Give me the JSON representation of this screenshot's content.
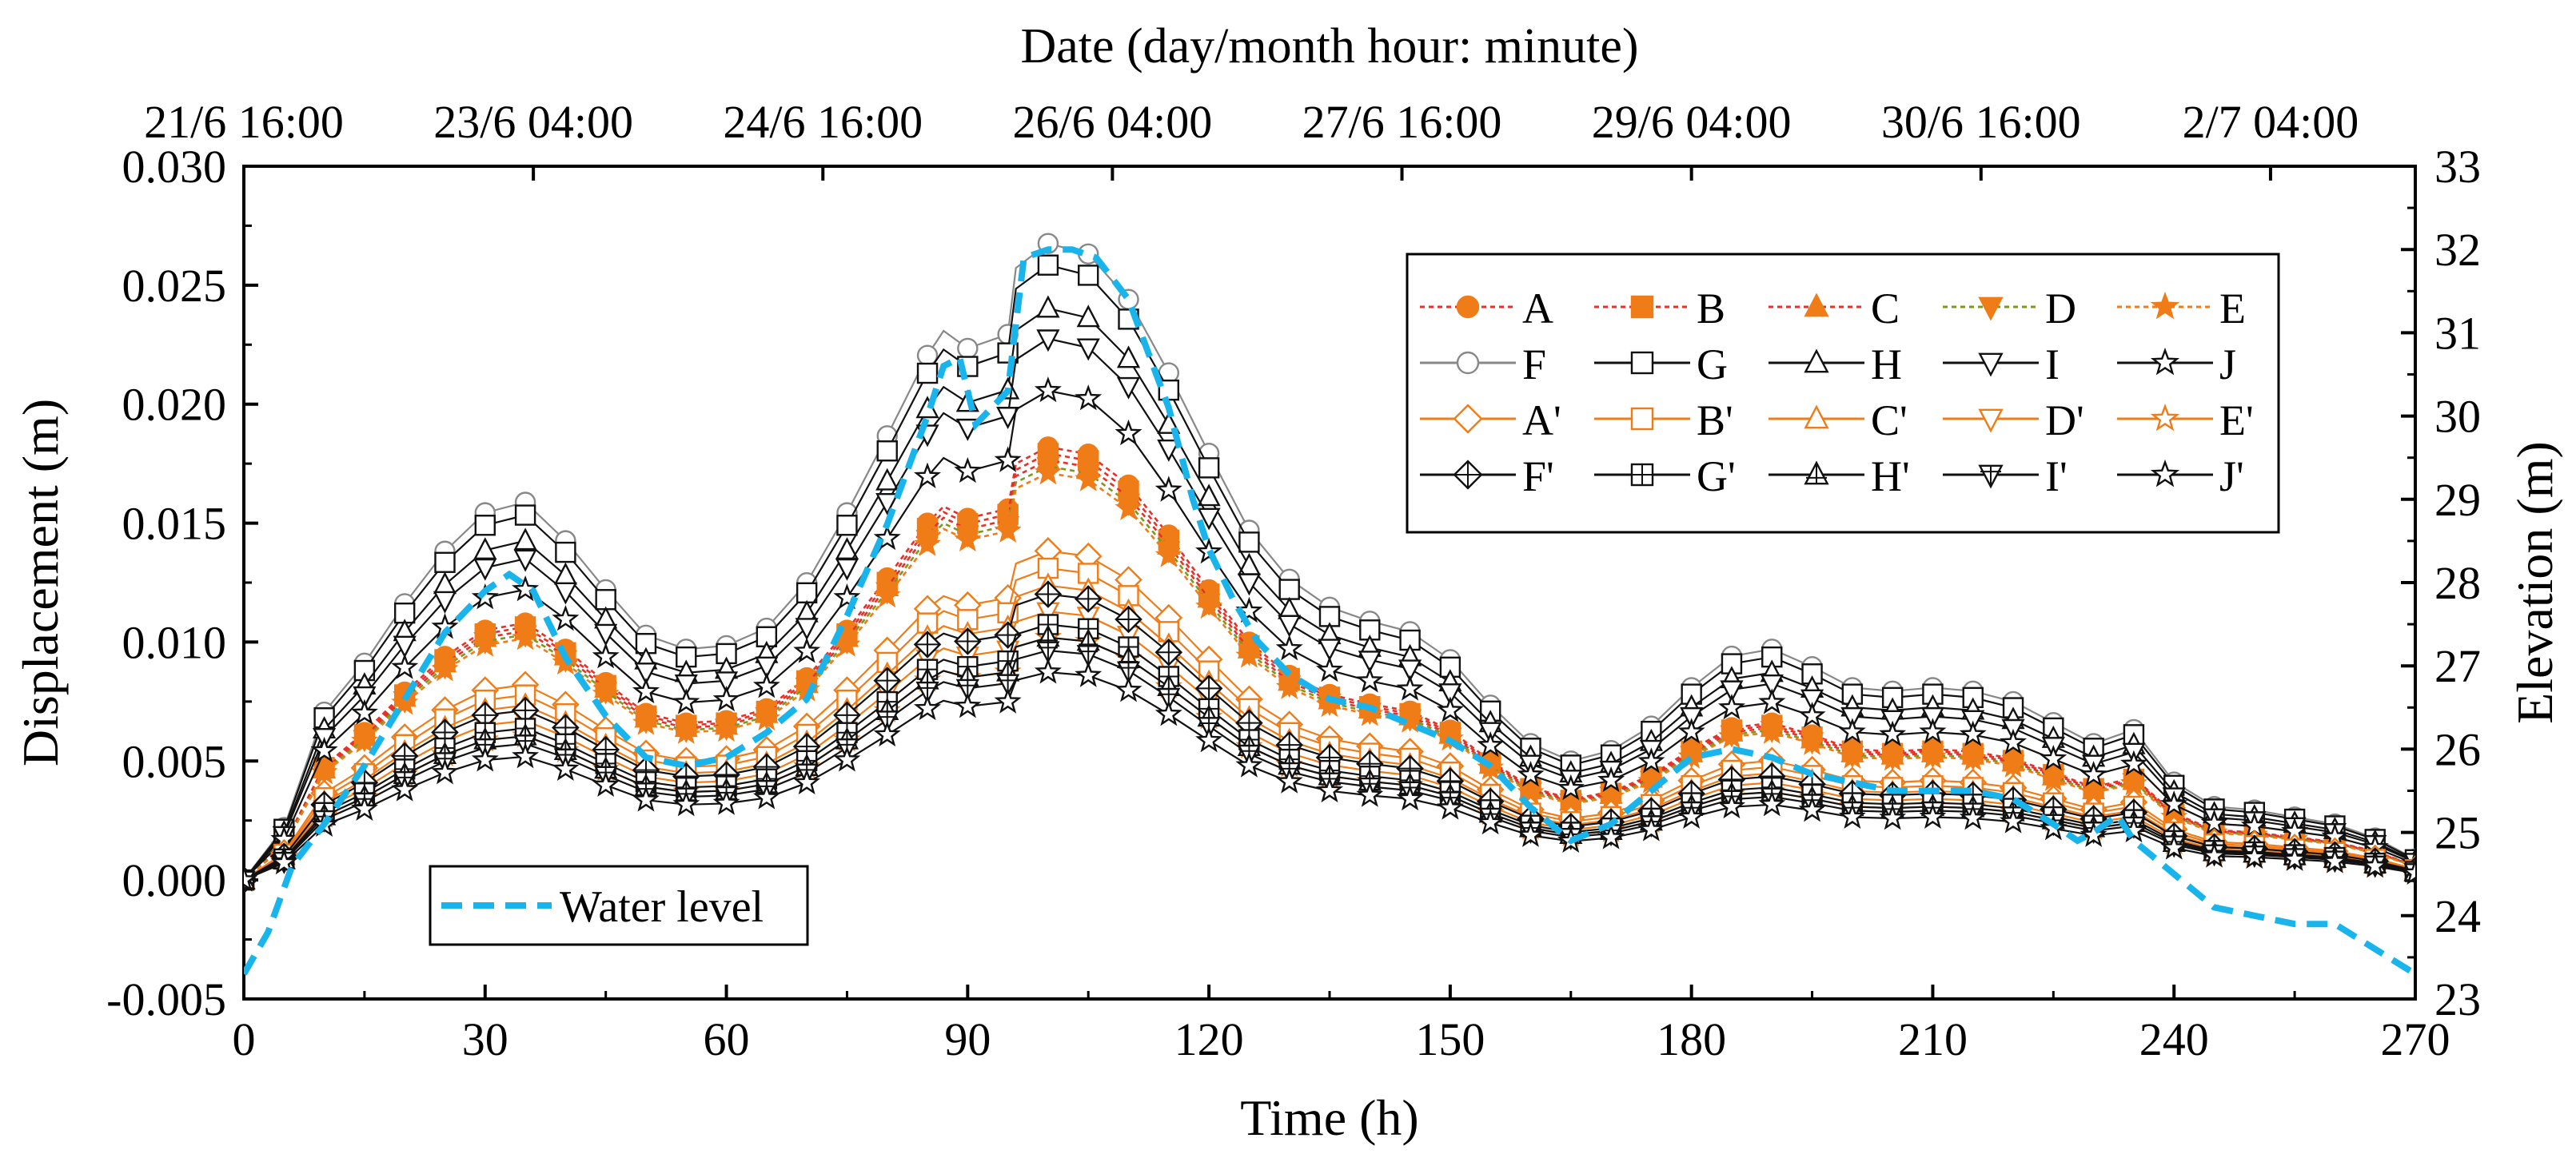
{
  "chart_data": {
    "type": "line",
    "top_axis_title": "Date (day/month hour: minute)",
    "top_tick_labels": [
      "21/6 16:00",
      "23/6 04:00",
      "24/6 16:00",
      "26/6 04:00",
      "27/6 16:00",
      "29/6 04:00",
      "30/6 16:00",
      "2/7 04:00"
    ],
    "top_tick_hours": [
      0,
      36,
      72,
      108,
      144,
      180,
      216,
      252
    ],
    "xlabel": "Time (h)",
    "ylabel": "Displacement (m)",
    "y2label": "Elevation (m)",
    "xlim": [
      0,
      270
    ],
    "ylim": [
      -0.005,
      0.03
    ],
    "y2lim": [
      23,
      33
    ],
    "x_tick_labels": [
      "0",
      "30",
      "60",
      "90",
      "120",
      "150",
      "180",
      "210",
      "240",
      "270"
    ],
    "y_tick_labels": [
      "-0.005",
      "0.000",
      "0.005",
      "0.010",
      "0.015",
      "0.020",
      "0.025",
      "0.030"
    ],
    "y2_tick_labels": [
      "23",
      "24",
      "25",
      "26",
      "27",
      "28",
      "29",
      "30",
      "31",
      "32",
      "33"
    ],
    "x": [
      0,
      5,
      10,
      15,
      20,
      25,
      30,
      35,
      40,
      45,
      50,
      55,
      60,
      65,
      70,
      75,
      80,
      85,
      87,
      90,
      95,
      96,
      100,
      105,
      110,
      115,
      120,
      125,
      130,
      135,
      140,
      145,
      150,
      155,
      160,
      165,
      170,
      175,
      180,
      185,
      190,
      195,
      200,
      205,
      210,
      215,
      220,
      225,
      230,
      235,
      240,
      245,
      250,
      255,
      260,
      265,
      270
    ],
    "base_profile": [
      0.0,
      0.0015,
      0.0048,
      0.0062,
      0.0079,
      0.0094,
      0.0105,
      0.0108,
      0.0097,
      0.0083,
      0.007,
      0.0066,
      0.0067,
      0.0072,
      0.0085,
      0.0105,
      0.0127,
      0.015,
      0.0157,
      0.0152,
      0.0156,
      0.0175,
      0.0182,
      0.0179,
      0.0166,
      0.0145,
      0.0122,
      0.01,
      0.0086,
      0.0078,
      0.0074,
      0.0071,
      0.0063,
      0.005,
      0.0039,
      0.0034,
      0.0037,
      0.0044,
      0.0055,
      0.0064,
      0.0066,
      0.0061,
      0.0055,
      0.0054,
      0.0055,
      0.0054,
      0.0051,
      0.0045,
      0.0039,
      0.0043,
      0.0028,
      0.0021,
      0.002,
      0.0018,
      0.0016,
      0.0012,
      0.0006
    ],
    "series": [
      {
        "name": "A",
        "scale": 1.0,
        "color": "#f07c18",
        "line": "#e8302a",
        "dash": "6,5",
        "marker": "circle",
        "fill": true
      },
      {
        "name": "B",
        "scale": 0.985,
        "color": "#f07c18",
        "line": "#e8302a",
        "dash": "6,5",
        "marker": "square",
        "fill": true
      },
      {
        "name": "C",
        "scale": 0.97,
        "color": "#f07c18",
        "line": "#e8302a",
        "dash": "6,5",
        "marker": "triangle",
        "fill": true
      },
      {
        "name": "D",
        "scale": 0.955,
        "color": "#f07c18",
        "line": "#7a9a1c",
        "dash": "6,5",
        "marker": "tri-down",
        "fill": true
      },
      {
        "name": "E",
        "scale": 0.94,
        "color": "#f07c18",
        "line": "#f07c18",
        "dash": "6,5",
        "marker": "star",
        "fill": true
      },
      {
        "name": "F",
        "scale": 1.47,
        "color": "#888888",
        "line": "#888888",
        "dash": "",
        "marker": "circle",
        "fill": false
      },
      {
        "name": "G",
        "scale": 1.42,
        "color": "#111111",
        "line": "#111111",
        "dash": "",
        "marker": "square",
        "fill": false
      },
      {
        "name": "H",
        "scale": 1.32,
        "color": "#111111",
        "line": "#111111",
        "dash": "",
        "marker": "triangle",
        "fill": false
      },
      {
        "name": "I",
        "scale": 1.25,
        "color": "#111111",
        "line": "#111111",
        "dash": "",
        "marker": "tri-down",
        "fill": false
      },
      {
        "name": "J",
        "scale": 1.13,
        "color": "#111111",
        "line": "#111111",
        "dash": "",
        "marker": "star",
        "fill": false
      },
      {
        "name": "A'",
        "scale": 0.76,
        "color": "#f07c18",
        "line": "#f07c18",
        "dash": "",
        "marker": "diamond",
        "fill": false
      },
      {
        "name": "B'",
        "scale": 0.72,
        "color": "#f07c18",
        "line": "#f07c18",
        "dash": "",
        "marker": "square",
        "fill": false
      },
      {
        "name": "C'",
        "scale": 0.68,
        "color": "#f07c18",
        "line": "#f07c18",
        "dash": "",
        "marker": "triangle",
        "fill": false
      },
      {
        "name": "D'",
        "scale": 0.62,
        "color": "#f07c18",
        "line": "#f07c18",
        "dash": "",
        "marker": "tri-down",
        "fill": false
      },
      {
        "name": "E'",
        "scale": 0.56,
        "color": "#f07c18",
        "line": "#f07c18",
        "dash": "",
        "marker": "star",
        "fill": false
      },
      {
        "name": "F'",
        "scale": 0.66,
        "color": "#111111",
        "line": "#111111",
        "dash": "",
        "marker": "diamond-cross",
        "fill": false
      },
      {
        "name": "G'",
        "scale": 0.59,
        "color": "#111111",
        "line": "#111111",
        "dash": "",
        "marker": "square-cross",
        "fill": false
      },
      {
        "name": "H'",
        "scale": 0.56,
        "color": "#111111",
        "line": "#111111",
        "dash": "",
        "marker": "triangle-cross",
        "fill": false
      },
      {
        "name": "I'",
        "scale": 0.53,
        "color": "#111111",
        "line": "#111111",
        "dash": "",
        "marker": "tri-down-cross",
        "fill": false
      },
      {
        "name": "J'",
        "scale": 0.48,
        "color": "#111111",
        "line": "#111111",
        "dash": "",
        "marker": "star",
        "fill": false
      }
    ],
    "water_level": {
      "name": "Water level",
      "color": "#1ab4ec",
      "axis": "right",
      "x": [
        0,
        3,
        6,
        10,
        15,
        20,
        25,
        30,
        33,
        36,
        40,
        45,
        50,
        55,
        60,
        65,
        70,
        75,
        80,
        85,
        87,
        89,
        91,
        95,
        97,
        100,
        103,
        106,
        110,
        115,
        118,
        120,
        123,
        126,
        130,
        135,
        140,
        145,
        150,
        155,
        160,
        165,
        170,
        175,
        180,
        185,
        190,
        195,
        200,
        205,
        210,
        215,
        220,
        225,
        228,
        230,
        233,
        235,
        240,
        245,
        250,
        255,
        260,
        265,
        270
      ],
      "y": [
        23.3,
        23.8,
        24.6,
        25.1,
        25.8,
        26.6,
        27.4,
        27.9,
        28.1,
        27.9,
        27.1,
        26.4,
        25.9,
        25.8,
        25.9,
        26.2,
        26.6,
        27.6,
        28.7,
        30.0,
        30.6,
        30.7,
        29.9,
        30.3,
        31.9,
        32.0,
        32.0,
        31.9,
        31.4,
        30.1,
        29.0,
        28.4,
        27.8,
        27.3,
        26.9,
        26.6,
        26.5,
        26.3,
        26.1,
        25.8,
        25.3,
        24.9,
        25.1,
        25.5,
        25.9,
        26.0,
        25.9,
        25.7,
        25.6,
        25.5,
        25.5,
        25.5,
        25.4,
        25.1,
        24.9,
        25.0,
        25.2,
        24.9,
        24.5,
        24.1,
        24.0,
        23.9,
        23.9,
        23.6,
        23.3
      ]
    }
  }
}
